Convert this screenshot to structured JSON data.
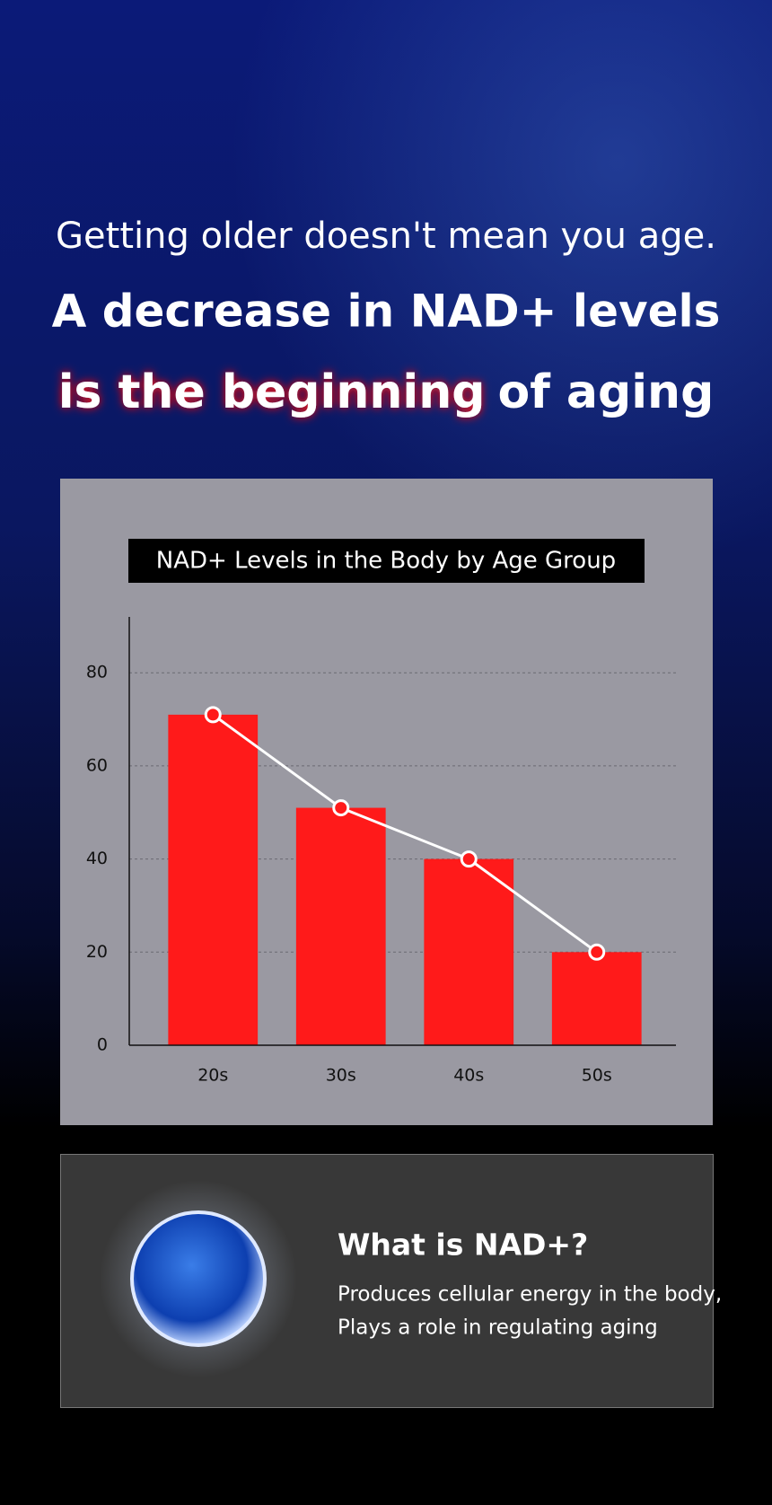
{
  "header": {
    "subtitle": "Getting older doesn't mean you age.",
    "headline": "A decrease in NAD+ levels",
    "highlight": "is the beginning",
    "rest": "of aging"
  },
  "chart_data": {
    "type": "bar",
    "title": "NAD+ Levels in the Body by Age Group",
    "categories": [
      "20s",
      "30s",
      "40s",
      "50s"
    ],
    "values": [
      71,
      51,
      40,
      20
    ],
    "color": "#ff1a1a",
    "line_overlay": true,
    "line_color": "#ffffff",
    "ylim": [
      0,
      92
    ],
    "yticks": [
      0,
      20,
      40,
      60,
      80
    ],
    "grid": true
  },
  "info": {
    "title": "What is NAD+?",
    "lines": [
      "Produces cellular energy in the body,",
      "Plays a role in regulating aging"
    ]
  }
}
